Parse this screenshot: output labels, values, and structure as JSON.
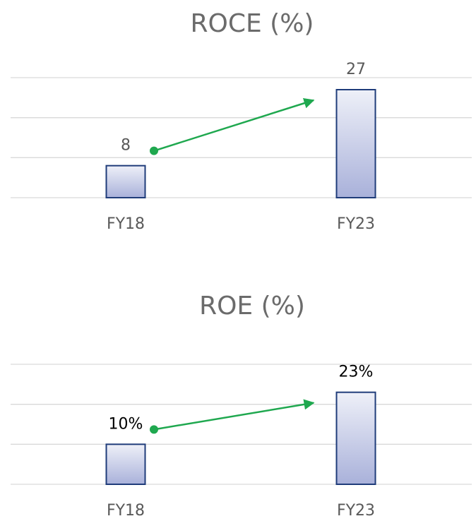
{
  "chart_data": [
    {
      "type": "bar",
      "title": "ROCE (%)",
      "categories": [
        "FY18",
        "FY23"
      ],
      "values": [
        8,
        27
      ],
      "ylim": [
        0,
        30
      ],
      "yticks": [
        0,
        10,
        20,
        30
      ],
      "grid": true,
      "color": "#1f3c7a"
    },
    {
      "type": "bar",
      "title": "ROE (%)",
      "categories": [
        "FY18",
        "FY23"
      ],
      "values": [
        10,
        23
      ],
      "value_labels": [
        "10%",
        "23%"
      ],
      "ylim": [
        0,
        30
      ],
      "yticks": [
        0,
        10,
        20,
        30
      ],
      "grid": true,
      "color": "#1f3c7a"
    }
  ]
}
